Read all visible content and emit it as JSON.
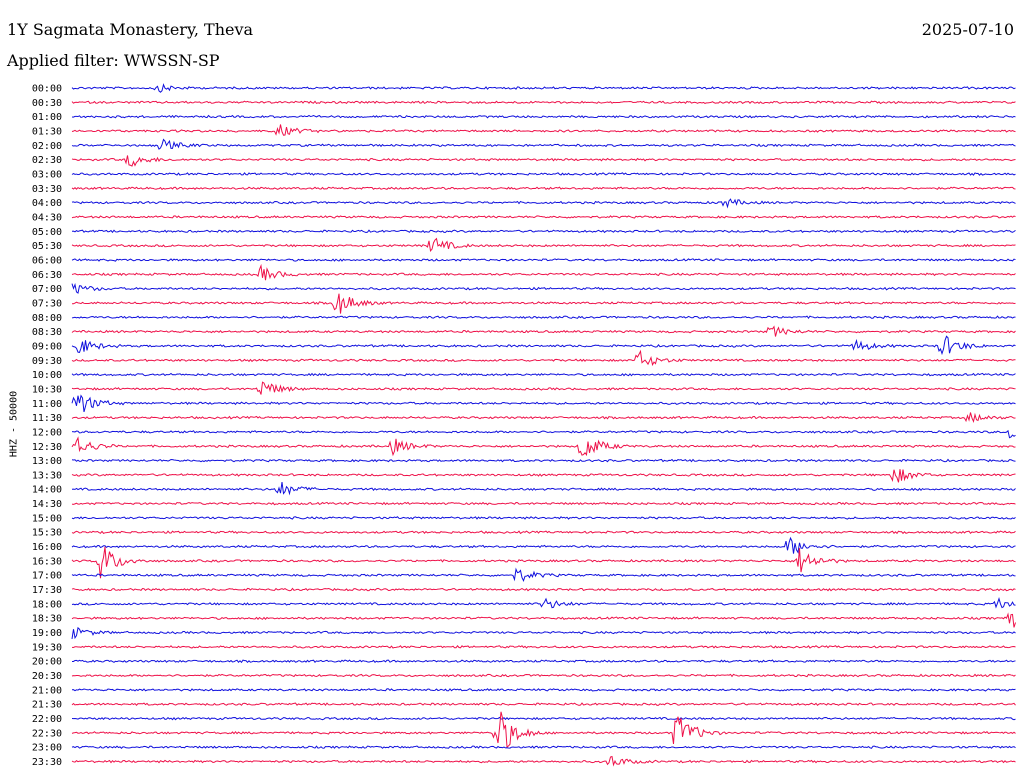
{
  "header": {
    "station": "1Y Sagmata Monastery, Theva",
    "date": "2025-07-10",
    "filter": "Applied filter: WWSSN-SP"
  },
  "colors": {
    "trace_a": "#1010dd",
    "trace_b": "#ee1149"
  },
  "chart_data": {
    "type": "line",
    "ylabel": "HHZ - 50000",
    "rows": [
      "00:00",
      "00:30",
      "01:00",
      "01:30",
      "02:00",
      "02:30",
      "03:00",
      "03:30",
      "04:00",
      "04:30",
      "05:00",
      "05:30",
      "06:00",
      "06:30",
      "07:00",
      "07:30",
      "08:00",
      "08:30",
      "09:00",
      "09:30",
      "10:00",
      "10:30",
      "11:00",
      "11:30",
      "12:00",
      "12:30",
      "13:00",
      "13:30",
      "14:00",
      "14:30",
      "15:00",
      "15:30",
      "16:00",
      "16:30",
      "17:00",
      "17:30",
      "18:00",
      "18:30",
      "19:00",
      "19:30",
      "20:00",
      "20:30",
      "21:00",
      "21:30",
      "22:00",
      "22:30",
      "23:00",
      "23:30"
    ],
    "trace_colors": [
      "blue",
      "red"
    ],
    "events": [
      {
        "row": "00:00",
        "x": 0.09,
        "amp": 4
      },
      {
        "row": "01:30",
        "x": 0.22,
        "amp": 6
      },
      {
        "row": "02:00",
        "x": 0.095,
        "amp": 6
      },
      {
        "row": "02:30",
        "x": 0.06,
        "amp": 8
      },
      {
        "row": "04:00",
        "x": 0.69,
        "amp": 5
      },
      {
        "row": "05:30",
        "x": 0.38,
        "amp": 10
      },
      {
        "row": "06:30",
        "x": 0.2,
        "amp": 8
      },
      {
        "row": "07:00",
        "x": 0.0,
        "amp": 6
      },
      {
        "row": "07:30",
        "x": 0.28,
        "amp": 14
      },
      {
        "row": "08:30",
        "x": 0.74,
        "amp": 6
      },
      {
        "row": "09:00",
        "x": 0.005,
        "amp": 10
      },
      {
        "row": "09:00",
        "x": 0.92,
        "amp": 14
      },
      {
        "row": "09:00",
        "x": 0.83,
        "amp": 6
      },
      {
        "row": "09:30",
        "x": 0.6,
        "amp": 10
      },
      {
        "row": "10:30",
        "x": 0.2,
        "amp": 10
      },
      {
        "row": "11:00",
        "x": 0.005,
        "amp": 14
      },
      {
        "row": "11:30",
        "x": 0.95,
        "amp": 5
      },
      {
        "row": "12:00",
        "x": 0.995,
        "amp": 12
      },
      {
        "row": "12:30",
        "x": 0.0,
        "amp": 14
      },
      {
        "row": "12:30",
        "x": 0.54,
        "amp": 16
      },
      {
        "row": "12:30",
        "x": 0.34,
        "amp": 8
      },
      {
        "row": "13:30",
        "x": 0.87,
        "amp": 10
      },
      {
        "row": "14:00",
        "x": 0.22,
        "amp": 8
      },
      {
        "row": "16:00",
        "x": 0.76,
        "amp": 10
      },
      {
        "row": "16:30",
        "x": 0.03,
        "amp": 20
      },
      {
        "row": "16:30",
        "x": 0.77,
        "amp": 14
      },
      {
        "row": "17:00",
        "x": 0.47,
        "amp": 8
      },
      {
        "row": "18:00",
        "x": 0.5,
        "amp": 6
      },
      {
        "row": "18:00",
        "x": 0.98,
        "amp": 6
      },
      {
        "row": "18:30",
        "x": 0.995,
        "amp": 12
      },
      {
        "row": "19:00",
        "x": 0.0,
        "amp": 6
      },
      {
        "row": "22:30",
        "x": 0.45,
        "amp": 30
      },
      {
        "row": "22:30",
        "x": 0.64,
        "amp": 22
      },
      {
        "row": "23:30",
        "x": 0.57,
        "amp": 6
      }
    ]
  }
}
